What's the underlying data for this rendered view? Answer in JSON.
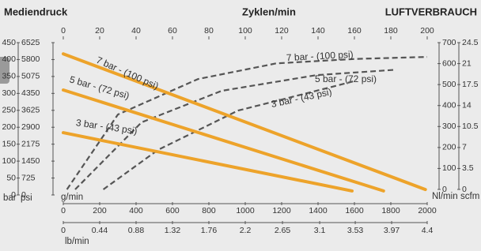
{
  "chart_data": [
    {
      "type": "line",
      "title": "Mediendruck",
      "y_unit": "bar",
      "y2_unit": "psi",
      "xlabel": "g/min",
      "x2label": "lb/min",
      "xlim": [
        0,
        2000
      ],
      "xticks": [
        0,
        200,
        400,
        600,
        800,
        1000,
        1200,
        1400,
        1600,
        1800,
        2000
      ],
      "x2lim": [
        0,
        4.4
      ],
      "x2ticks": [
        0,
        0.44,
        0.88,
        1.32,
        1.76,
        2.2,
        2.65,
        3.1,
        3.53,
        3.97,
        4.4
      ],
      "ylim": [
        0,
        450
      ],
      "yticks": [
        0,
        50,
        100,
        150,
        200,
        250,
        300,
        350,
        400,
        450
      ],
      "y2lim": [
        0,
        6525
      ],
      "y2ticks": [
        0,
        725,
        1450,
        2175,
        2900,
        3625,
        4350,
        5075,
        5800,
        6525
      ],
      "series": [
        {
          "name": "7 bar - (100 psi)",
          "color": "#eda32a",
          "x": [
            0,
            1990
          ],
          "values": [
            417,
            16
          ]
        },
        {
          "name": "5 bar - (72 psi)",
          "color": "#eda32a",
          "x": [
            0,
            1760
          ],
          "values": [
            310,
            12
          ]
        },
        {
          "name": "3 bar - (43 psi)",
          "color": "#eda32a",
          "x": [
            0,
            1587
          ],
          "values": [
            184,
            12
          ]
        }
      ]
    },
    {
      "type": "line",
      "title": "LUFTVERBRAUCH",
      "xlabel": "Zyklen/min",
      "y_unit": "Nl/min",
      "y2_unit": "scfm",
      "xlim": [
        0,
        200
      ],
      "xticks": [
        0,
        20,
        40,
        60,
        80,
        100,
        120,
        140,
        160,
        180,
        200
      ],
      "ylim": [
        0,
        700
      ],
      "yticks": [
        0,
        100,
        200,
        300,
        400,
        500,
        600,
        700
      ],
      "y2lim": [
        0,
        24.5
      ],
      "y2ticks": [
        0,
        3.5,
        7,
        10.5,
        14,
        17.5,
        21,
        24.5
      ],
      "series": [
        {
          "name": "7 bar - (100 psi)",
          "color": "#555555",
          "x": [
            2,
            30,
            74,
            117,
            160,
            200
          ],
          "values": [
            0,
            357,
            526,
            601,
            622,
            632
          ]
        },
        {
          "name": "5 bar - (72 psi)",
          "color": "#555555",
          "x": [
            6.5,
            43,
            87,
            139,
            183
          ],
          "values": [
            0,
            320,
            470,
            545,
            571
          ]
        },
        {
          "name": "3 bar - (43 psi)",
          "color": "#555555",
          "x": [
            22,
            52,
            96,
            139,
            161
          ],
          "values": [
            0,
            188,
            376,
            470,
            519
          ]
        }
      ]
    }
  ]
}
